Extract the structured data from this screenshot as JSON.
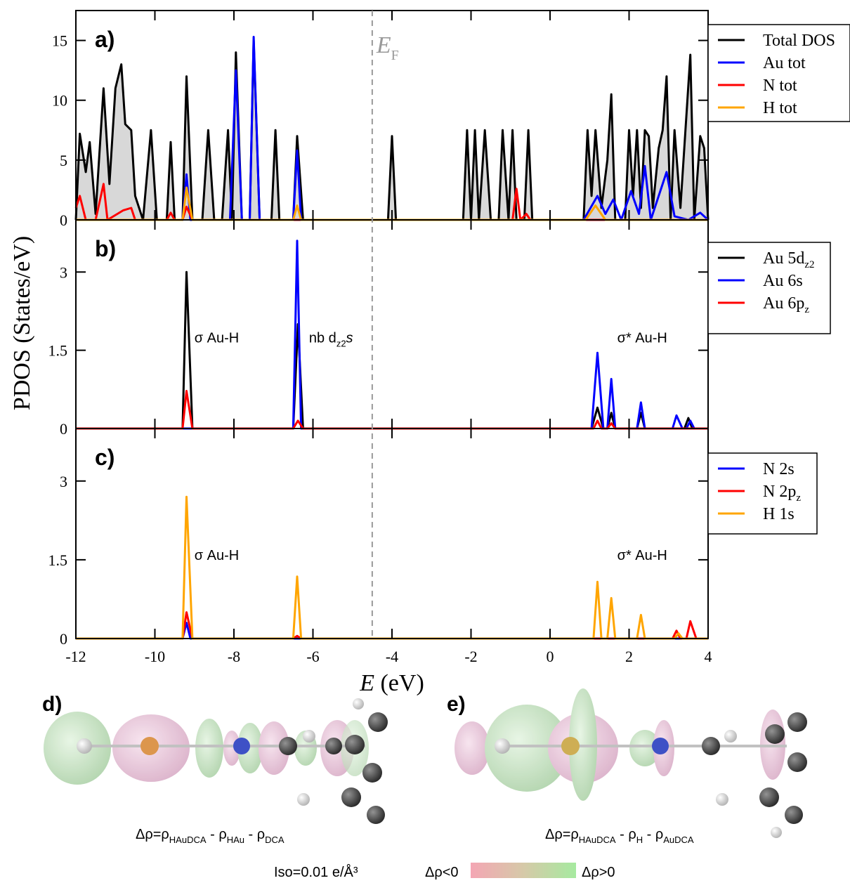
{
  "chart_data": [
    {
      "type": "line",
      "panel_label": "a)",
      "ylim": [
        0,
        17.5
      ],
      "yticks": [
        0,
        5,
        10,
        15
      ],
      "xlim": [
        -12,
        4
      ],
      "xticks": [
        -12,
        -10,
        -8,
        -6,
        -4,
        -2,
        0,
        2,
        4
      ],
      "series": [
        {
          "name": "Total DOS",
          "color": "#000000",
          "fill": "#d8d8d8",
          "x": [
            -12,
            -11.9,
            -11.75,
            -11.65,
            -11.5,
            -11.3,
            -11.15,
            -11.0,
            -10.85,
            -10.75,
            -10.6,
            -10.5,
            -10.3,
            -10.1,
            -9.95,
            -9.7,
            -9.6,
            -9.5,
            -9.3,
            -9.2,
            -9.05,
            -8.8,
            -8.65,
            -8.5,
            -8.3,
            -8.15,
            -8.05,
            -7.95,
            -7.8,
            -7.6,
            -7.5,
            -7.35,
            -7.05,
            -6.95,
            -6.85,
            -6.5,
            -6.4,
            -6.25,
            -4.1,
            -4.0,
            -3.9,
            -2.2,
            -2.1,
            -2.0,
            -1.9,
            -1.8,
            -1.65,
            -1.5,
            -1.3,
            -1.2,
            -1.05,
            -0.95,
            -0.85,
            -0.65,
            -0.55,
            -0.45,
            0.85,
            0.95,
            1.05,
            1.15,
            1.3,
            1.45,
            1.55,
            1.65,
            1.9,
            2.0,
            2.1,
            2.2,
            2.3,
            2.4,
            2.5,
            2.6,
            2.75,
            2.85,
            2.95,
            3.05,
            3.15,
            3.3,
            3.55,
            3.65,
            3.8,
            3.9,
            4.0
          ],
          "values": [
            0,
            7.2,
            4,
            6.5,
            0.5,
            11,
            3,
            11,
            13,
            8,
            7.5,
            2,
            0,
            7.5,
            0,
            0,
            6.5,
            0,
            0,
            12,
            0,
            0,
            7.5,
            0,
            0,
            7.5,
            0,
            14,
            0,
            0,
            15,
            0,
            0,
            7.5,
            0,
            0,
            7,
            0,
            0,
            7,
            0,
            0,
            7.5,
            0,
            7.5,
            0,
            7.5,
            0,
            0,
            7.5,
            0,
            7.5,
            0,
            0,
            7.5,
            0,
            0,
            7.5,
            2,
            7.5,
            1,
            5,
            10.5,
            0,
            0,
            7.5,
            2,
            7.5,
            1,
            7.5,
            7,
            1,
            6,
            7.5,
            12,
            0,
            7.5,
            1,
            13.8,
            0,
            7,
            6,
            0
          ]
        },
        {
          "name": "Au tot",
          "color": "#0000ff",
          "x": [
            -12,
            -9.3,
            -9.2,
            -9.1,
            -8.1,
            -7.95,
            -7.8,
            -7.6,
            -7.5,
            -7.35,
            -6.5,
            -6.4,
            -6.3,
            0.85,
            1.2,
            1.4,
            1.6,
            1.8,
            2.05,
            2.25,
            2.4,
            2.55,
            2.95,
            3.15,
            3.5,
            3.8,
            4.0
          ],
          "values": [
            0,
            0,
            3.8,
            0,
            0,
            12.5,
            0,
            0,
            15.3,
            0,
            0,
            5.8,
            0,
            0,
            2,
            0.5,
            1.7,
            0,
            2.4,
            0.5,
            4.5,
            0,
            4,
            0.3,
            0,
            0.6,
            0
          ]
        },
        {
          "name": "N tot",
          "color": "#ff0000",
          "x": [
            -12,
            -11.9,
            -11.75,
            -11.5,
            -11.3,
            -11.2,
            -10.95,
            -10.8,
            -10.6,
            -10.5,
            -9.7,
            -9.6,
            -9.5,
            -9.3,
            -9.2,
            -9.05,
            -0.95,
            -0.85,
            -0.75,
            -0.6,
            -0.5,
            4.0
          ],
          "values": [
            1,
            2,
            0,
            0,
            3,
            0,
            0.5,
            0.8,
            1,
            0,
            0,
            0.6,
            0,
            0,
            1.1,
            0,
            0,
            2.6,
            0,
            0.5,
            0,
            0
          ]
        },
        {
          "name": "H tot",
          "color": "#ffa500",
          "x": [
            -12,
            -9.3,
            -9.2,
            -9.05,
            -6.5,
            -6.4,
            -6.3,
            0.9,
            1.15,
            1.4,
            4.0
          ],
          "values": [
            0,
            0,
            2.7,
            0,
            0,
            1.2,
            0,
            0,
            1.2,
            0,
            0
          ]
        }
      ]
    },
    {
      "type": "line",
      "panel_label": "b)",
      "ylim": [
        0,
        4
      ],
      "yticks": [
        0,
        1.5,
        3
      ],
      "xlim": [
        -12,
        4
      ],
      "xticks": [
        -12,
        -10,
        -8,
        -6,
        -4,
        -2,
        0,
        2,
        4
      ],
      "annotations": [
        {
          "text": "σ Au-H"
        },
        {
          "text": "nb d",
          "sub": "z2",
          "tail": "s"
        },
        {
          "text": "σ* Au-H"
        }
      ],
      "series": [
        {
          "name": "Au 5d",
          "sub": "z2",
          "color": "#000000",
          "x": [
            -12,
            -9.3,
            -9.2,
            -9.05,
            -6.5,
            -6.38,
            -6.25,
            1.05,
            1.2,
            1.35,
            1.45,
            1.55,
            1.65,
            2.2,
            2.3,
            2.4,
            3.4,
            3.5,
            3.6,
            4.0
          ],
          "values": [
            0,
            0,
            3.0,
            0,
            0,
            2.0,
            0,
            0,
            0.4,
            0,
            0,
            0.3,
            0,
            0,
            0.3,
            0,
            0,
            0.2,
            0,
            0
          ]
        },
        {
          "name": "Au 6s",
          "color": "#0000ff",
          "x": [
            -12,
            -6.5,
            -6.4,
            -6.3,
            1.05,
            1.2,
            1.35,
            1.45,
            1.55,
            1.65,
            2.2,
            2.3,
            2.4,
            3.1,
            3.2,
            3.35,
            3.45,
            3.55,
            3.65,
            4.0
          ],
          "values": [
            0,
            0,
            3.6,
            0,
            0,
            1.45,
            0,
            0,
            0.95,
            0,
            0,
            0.5,
            0,
            0,
            0.25,
            0,
            0,
            0.15,
            0,
            0
          ]
        },
        {
          "name": "Au 6p",
          "sub": "z",
          "color": "#ff0000",
          "x": [
            -12,
            -9.3,
            -9.2,
            -9.05,
            -6.5,
            -6.38,
            -6.25,
            1.1,
            1.2,
            1.3,
            1.45,
            1.55,
            1.65,
            4.0
          ],
          "values": [
            0,
            0,
            0.72,
            0,
            0,
            0.15,
            0,
            0,
            0.15,
            0,
            0,
            0.1,
            0,
            0
          ]
        }
      ]
    },
    {
      "type": "line",
      "panel_label": "c)",
      "ylim": [
        0,
        4
      ],
      "yticks": [
        0,
        1.5,
        3
      ],
      "xlim": [
        -12,
        4
      ],
      "xticks": [
        -12,
        -10,
        -8,
        -6,
        -4,
        -2,
        0,
        2,
        4
      ],
      "annotations": [
        {
          "text": "σ Au-H"
        },
        {
          "text": "σ* Au-H"
        }
      ],
      "series": [
        {
          "name": "N 2s",
          "color": "#0000ff",
          "x": [
            -12,
            -9.3,
            -9.2,
            -9.1,
            4.0
          ],
          "values": [
            0,
            0,
            0.3,
            0,
            0
          ]
        },
        {
          "name": "N 2p",
          "sub": "z",
          "color": "#ff0000",
          "x": [
            -12,
            -9.3,
            -9.2,
            -9.05,
            -6.5,
            -6.4,
            -6.3,
            3.1,
            3.2,
            3.3,
            3.45,
            3.55,
            3.7,
            4.0
          ],
          "values": [
            0,
            0,
            0.5,
            0,
            0,
            0.05,
            0,
            0,
            0.15,
            0,
            0,
            0.33,
            0,
            0
          ]
        },
        {
          "name": "H 1s",
          "color": "#ffa500",
          "x": [
            -12,
            -9.3,
            -9.2,
            -9.05,
            -6.5,
            -6.4,
            -6.3,
            1.1,
            1.2,
            1.3,
            1.45,
            1.55,
            1.65,
            2.2,
            2.3,
            2.4,
            3.15,
            3.25,
            3.35,
            4.0
          ],
          "values": [
            0,
            0,
            2.7,
            0,
            0,
            1.18,
            0,
            0,
            1.08,
            0,
            0,
            0.77,
            0,
            0,
            0.45,
            0,
            0,
            0.1,
            0,
            0
          ]
        }
      ]
    }
  ],
  "y_label": "PDOS (States/eV)",
  "x_label": {
    "symbol": "E",
    "unit": "(eV)"
  },
  "fermi": {
    "x": -4.5,
    "symbol": "E",
    "sub": "F"
  },
  "panel_d": {
    "label": "d)",
    "formula": [
      {
        "text": "Δρ=ρ",
        "sub": "HAuDCA"
      },
      {
        "text": " - ρ",
        "sub": "HAu"
      },
      {
        "text": " - ρ",
        "sub": "DCA"
      }
    ]
  },
  "panel_e": {
    "label": "e)",
    "formula": [
      {
        "text": "Δρ=ρ",
        "sub": "HAuDCA"
      },
      {
        "text": " - ρ",
        "sub": "H"
      },
      {
        "text": " - ρ",
        "sub": "AuDCA"
      }
    ]
  },
  "iso": "Iso=0.01 e/Å³",
  "colorbar": {
    "low": "Δρ<0",
    "high": "Δρ>0"
  }
}
